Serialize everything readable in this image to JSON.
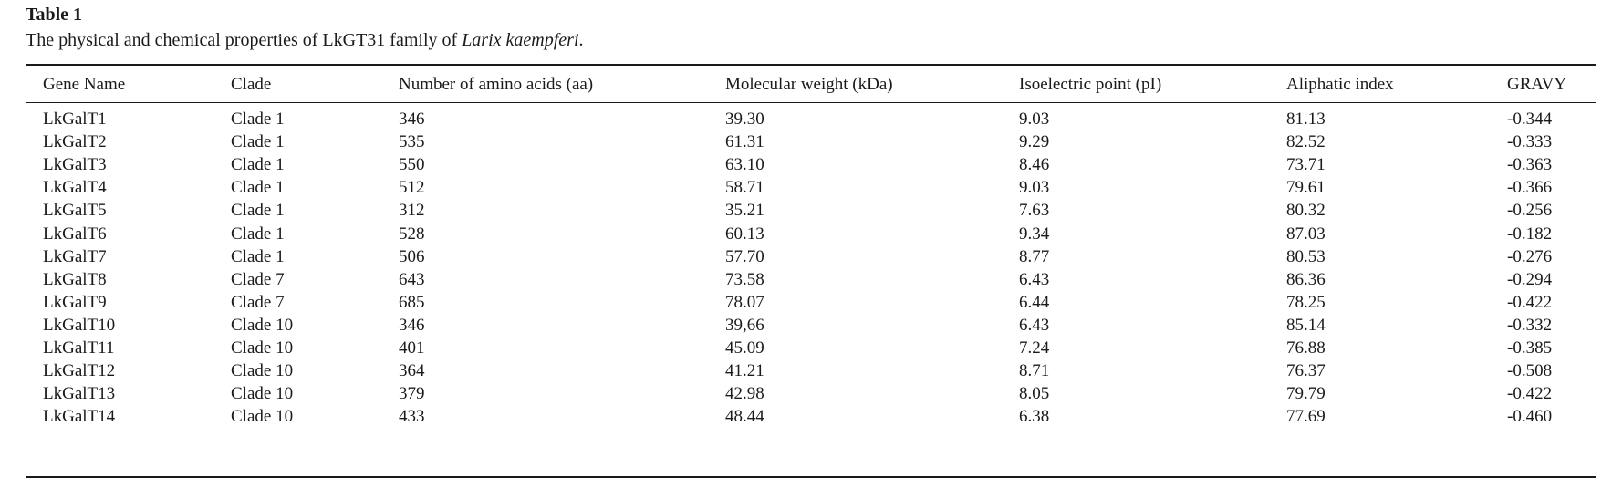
{
  "caption": {
    "label": "Table 1",
    "text_prefix": "The physical and chemical properties of LkGT31 family of ",
    "text_species": "Larix kaempferi",
    "text_suffix": "."
  },
  "table": {
    "headers": [
      "Gene Name",
      "Clade",
      "Number of amino acids (aa)",
      "Molecular weight (kDa)",
      "Isoelectric point (pI)",
      "Aliphatic index",
      "GRAVY"
    ],
    "rows": [
      [
        "LkGalT1",
        "Clade 1",
        "346",
        "39.30",
        "9.03",
        "81.13",
        "-0.344"
      ],
      [
        "LkGalT2",
        "Clade 1",
        "535",
        "61.31",
        "9.29",
        "82.52",
        "-0.333"
      ],
      [
        "LkGalT3",
        "Clade 1",
        "550",
        "63.10",
        "8.46",
        "73.71",
        "-0.363"
      ],
      [
        "LkGalT4",
        "Clade 1",
        "512",
        "58.71",
        "9.03",
        "79.61",
        "-0.366"
      ],
      [
        "LkGalT5",
        "Clade 1",
        "312",
        "35.21",
        "7.63",
        "80.32",
        "-0.256"
      ],
      [
        "LkGalT6",
        "Clade 1",
        "528",
        "60.13",
        "9.34",
        "87.03",
        "-0.182"
      ],
      [
        "LkGalT7",
        "Clade 1",
        "506",
        "57.70",
        "8.77",
        "80.53",
        "-0.276"
      ],
      [
        "LkGalT8",
        "Clade 7",
        "643",
        "73.58",
        "6.43",
        "86.36",
        "-0.294"
      ],
      [
        "LkGalT9",
        "Clade 7",
        "685",
        "78.07",
        "6.44",
        "78.25",
        "-0.422"
      ],
      [
        "LkGalT10",
        "Clade 10",
        "346",
        "39,66",
        "6.43",
        "85.14",
        "-0.332"
      ],
      [
        "LkGalT11",
        "Clade 10",
        "401",
        "45.09",
        "7.24",
        "76.88",
        "-0.385"
      ],
      [
        "LkGalT12",
        "Clade 10",
        "364",
        "41.21",
        "8.71",
        "76.37",
        "-0.508"
      ],
      [
        "LkGalT13",
        "Clade 10",
        "379",
        "42.98",
        "8.05",
        "79.79",
        "-0.422"
      ],
      [
        "LkGalT14",
        "Clade 10",
        "433",
        "48.44",
        "6.38",
        "77.69",
        "-0.460"
      ]
    ]
  }
}
